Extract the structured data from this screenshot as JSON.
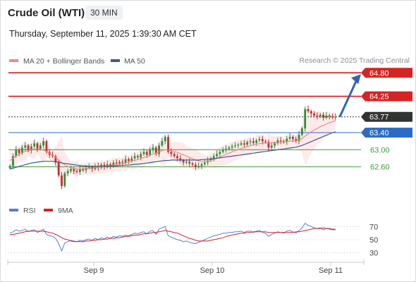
{
  "header": {
    "instrument": "Crude Oil (WTI)",
    "timeframe": "30 MIN",
    "datetime": "Thursday, September 11, 2025 1:39:30 AM CET",
    "copyright": "Research © 2025 Trading Central"
  },
  "colors": {
    "resistance": "#d62424",
    "support": "#3a9e3a",
    "current": "#333333",
    "pivot": "#2a6cc4",
    "ma20": "#e88a8a",
    "ma50": "#3b5b8c",
    "bollinger_fill": "#fde3e3",
    "candle_up": "#2f8f3a",
    "candle_down": "#c92c2c",
    "rsi": "#5b7fd0",
    "rsi_ma": "#d62424"
  },
  "chart_data": {
    "type": "candlestick",
    "legend": [
      "MA 20 + Bollinger Bands",
      "MA 50"
    ],
    "legend_position": "top-left",
    "x_tick_labels": [
      "Sep 9",
      "Sep 10",
      "Sep 11"
    ],
    "price_levels": [
      {
        "label": "64.80",
        "value": 64.8,
        "kind": "resistance"
      },
      {
        "label": "64.25",
        "value": 64.25,
        "kind": "resistance"
      },
      {
        "label": "63.77",
        "value": 63.77,
        "kind": "current"
      },
      {
        "label": "63.40",
        "value": 63.4,
        "kind": "pivot"
      },
      {
        "label": "63.00",
        "value": 63.0,
        "kind": "support"
      },
      {
        "label": "62.60",
        "value": 62.6,
        "kind": "support"
      }
    ],
    "forecast_arrow": {
      "from": 63.77,
      "to": 64.8
    },
    "closes": [
      62.62,
      62.85,
      63.0,
      62.92,
      63.05,
      63.1,
      62.98,
      63.08,
      63.15,
      63.02,
      63.1,
      63.2,
      62.95,
      62.88,
      62.85,
      62.7,
      62.4,
      62.15,
      62.45,
      62.5,
      62.55,
      62.5,
      62.48,
      62.55,
      62.52,
      62.58,
      62.6,
      62.55,
      62.62,
      62.58,
      62.65,
      62.6,
      62.66,
      62.62,
      62.7,
      62.68,
      62.72,
      62.7,
      62.78,
      62.74,
      62.8,
      62.85,
      62.82,
      62.9,
      62.95,
      62.88,
      63.0,
      63.05,
      62.9,
      63.1,
      63.2,
      63.3,
      62.95,
      62.9,
      62.85,
      62.8,
      62.75,
      62.7,
      62.72,
      62.68,
      62.65,
      62.6,
      62.62,
      62.66,
      62.7,
      62.75,
      62.8,
      62.85,
      62.9,
      62.95,
      63.0,
      63.02,
      63.05,
      63.08,
      63.1,
      63.12,
      63.15,
      63.12,
      63.18,
      63.2,
      63.16,
      63.22,
      63.25,
      63.2,
      63.18,
      63.05,
      63.1,
      63.15,
      63.22,
      63.2,
      63.18,
      63.26,
      63.3,
      63.25,
      63.2,
      63.35,
      63.5,
      63.95,
      63.9,
      63.85,
      63.8,
      63.78,
      63.82,
      63.75,
      63.8,
      63.78,
      63.76,
      63.77
    ],
    "ma20": [
      62.75,
      62.8,
      62.85,
      62.9,
      62.93,
      62.96,
      62.98,
      63.0,
      63.02,
      63.02,
      63.01,
      62.99,
      62.96,
      62.92,
      62.87,
      62.82,
      62.76,
      62.7,
      62.65,
      62.61,
      62.58,
      62.56,
      62.55,
      62.55,
      62.55,
      62.56,
      62.56,
      62.57,
      62.58,
      62.59,
      62.6,
      62.61,
      62.62,
      62.63,
      62.64,
      62.65,
      62.66,
      62.68,
      62.69,
      62.71,
      62.73,
      62.75,
      62.77,
      62.79,
      62.82,
      62.84,
      62.87,
      62.9,
      62.92,
      62.95,
      62.98,
      63.0,
      62.99,
      62.98,
      62.96,
      62.94,
      62.91,
      62.88,
      62.85,
      62.82,
      62.79,
      62.76,
      62.74,
      62.73,
      62.73,
      62.73,
      62.75,
      62.77,
      62.8,
      62.83,
      62.86,
      62.89,
      62.92,
      62.95,
      62.98,
      63.0,
      63.03,
      63.05,
      63.07,
      63.09,
      63.11,
      63.13,
      63.14,
      63.15,
      63.16,
      63.16,
      63.16,
      63.17,
      63.17,
      63.18,
      63.18,
      63.19,
      63.2,
      63.2,
      63.21,
      63.23,
      63.26,
      63.32,
      63.37,
      63.42,
      63.46,
      63.5,
      63.54,
      63.57,
      63.6,
      63.63,
      63.66,
      63.68
    ],
    "ma50": [
      62.55,
      62.57,
      62.59,
      62.61,
      62.63,
      62.65,
      62.67,
      62.69,
      62.7,
      62.71,
      62.72,
      62.73,
      62.73,
      62.73,
      62.73,
      62.72,
      62.71,
      62.69,
      62.68,
      62.67,
      62.66,
      62.65,
      62.64,
      62.63,
      62.62,
      62.62,
      62.61,
      62.61,
      62.61,
      62.61,
      62.61,
      62.61,
      62.61,
      62.62,
      62.62,
      62.62,
      62.63,
      62.63,
      62.64,
      62.64,
      62.65,
      62.66,
      62.66,
      62.67,
      62.68,
      62.69,
      62.7,
      62.71,
      62.72,
      62.73,
      62.74,
      62.75,
      62.75,
      62.76,
      62.76,
      62.76,
      62.76,
      62.76,
      62.76,
      62.76,
      62.76,
      62.76,
      62.76,
      62.77,
      62.77,
      62.78,
      62.78,
      62.79,
      62.8,
      62.81,
      62.82,
      62.83,
      62.84,
      62.85,
      62.86,
      62.87,
      62.88,
      62.89,
      62.9,
      62.91,
      62.92,
      62.93,
      62.94,
      62.95,
      62.96,
      62.97,
      62.98,
      62.99,
      63.0,
      63.01,
      63.02,
      63.03,
      63.04,
      63.05,
      63.06,
      63.08,
      63.1,
      63.13,
      63.16,
      63.19,
      63.22,
      63.25,
      63.28,
      63.31,
      63.34,
      63.37,
      63.4,
      63.42
    ],
    "rsi_panel": {
      "legend": [
        "RSI",
        "9MA"
      ],
      "ticks": [
        "70",
        "50",
        "30"
      ],
      "range": [
        20,
        80
      ],
      "rsi": [
        60,
        62,
        65,
        63,
        64,
        66,
        62,
        64,
        65,
        61,
        63,
        66,
        58,
        56,
        55,
        52,
        44,
        33,
        45,
        47,
        49,
        48,
        47,
        49,
        48,
        50,
        51,
        49,
        52,
        50,
        53,
        51,
        54,
        52,
        55,
        54,
        56,
        55,
        57,
        56,
        58,
        60,
        59,
        61,
        62,
        59,
        63,
        64,
        58,
        66,
        68,
        70,
        56,
        54,
        52,
        50,
        49,
        47,
        48,
        46,
        45,
        44,
        46,
        48,
        50,
        52,
        54,
        56,
        57,
        58,
        60,
        60,
        61,
        61,
        62,
        62,
        63,
        61,
        63,
        63,
        61,
        63,
        64,
        61,
        60,
        55,
        58,
        60,
        62,
        61,
        60,
        63,
        64,
        62,
        60,
        64,
        68,
        75,
        72,
        70,
        68,
        67,
        68,
        65,
        67,
        66,
        65,
        65
      ],
      "ma9": [
        58,
        58,
        59,
        60,
        61,
        62,
        63,
        63,
        63,
        63,
        63,
        63,
        62,
        61,
        60,
        58,
        56,
        53,
        51,
        50,
        48,
        47,
        47,
        47,
        47,
        48,
        48,
        49,
        49,
        50,
        50,
        51,
        51,
        52,
        52,
        53,
        53,
        54,
        55,
        55,
        56,
        57,
        57,
        58,
        59,
        59,
        60,
        61,
        61,
        62,
        63,
        64,
        63,
        62,
        61,
        60,
        58,
        56,
        54,
        52,
        51,
        49,
        48,
        48,
        48,
        48,
        49,
        50,
        51,
        52,
        53,
        55,
        56,
        57,
        58,
        59,
        60,
        60,
        61,
        61,
        62,
        62,
        62,
        62,
        62,
        61,
        61,
        61,
        61,
        61,
        61,
        61,
        61,
        61,
        62,
        62,
        63,
        64,
        65,
        66,
        67,
        67,
        67,
        68,
        67,
        67,
        66,
        66
      ]
    }
  }
}
